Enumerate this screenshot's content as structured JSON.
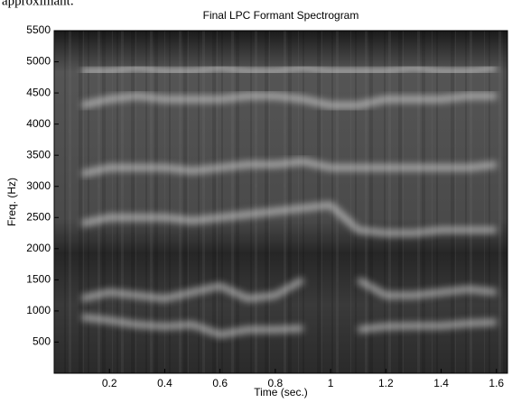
{
  "caption_fragment": "approximant.",
  "chart_data": {
    "type": "spectrogram",
    "title": "Final LPC Formant Spectrogram",
    "xlabel": "Time (sec.)",
    "ylabel": "Freq. (Hz)",
    "x": [
      0.1,
      0.2,
      0.3,
      0.4,
      0.5,
      0.6,
      0.7,
      0.8,
      0.9,
      1.0,
      1.1,
      1.2,
      1.3,
      1.4,
      1.5,
      1.6
    ],
    "series": [
      {
        "color": "#ffffff",
        "values": [
          900,
          850,
          780,
          750,
          780,
          620,
          700,
          700,
          720,
          null,
          700,
          750,
          760,
          760,
          800,
          820
        ]
      },
      {
        "color": "#ffffff",
        "values": [
          1200,
          1300,
          1250,
          1200,
          1300,
          1400,
          1200,
          1250,
          1500,
          null,
          1500,
          1250,
          1250,
          1300,
          1350,
          1300
        ]
      },
      {
        "color": "#ffffff",
        "values": [
          2400,
          2500,
          2500,
          2500,
          2450,
          2500,
          2550,
          2600,
          2650,
          2700,
          2300,
          2250,
          2250,
          2300,
          2300,
          2300
        ]
      },
      {
        "color": "#ffffff",
        "values": [
          3200,
          3300,
          3300,
          3300,
          3250,
          3300,
          3350,
          3350,
          3400,
          3300,
          3300,
          3300,
          3300,
          3300,
          3300,
          3350
        ]
      },
      {
        "color": "#ffffff",
        "values": [
          4300,
          4400,
          4450,
          4400,
          4400,
          4400,
          4450,
          4450,
          4400,
          4300,
          4300,
          4400,
          4400,
          4400,
          4450,
          4450
        ]
      },
      {
        "color": "#ffffff",
        "values": [
          4850,
          4850,
          4900,
          4850,
          4850,
          4900,
          4850,
          4850,
          4900,
          4850,
          4850,
          4850,
          4900,
          4850,
          4850,
          4900
        ]
      }
    ],
    "xlim": [
      0,
      1.64
    ],
    "xticks": [
      0.2,
      0.4,
      0.6,
      0.8,
      1,
      1.2,
      1.4,
      1.6
    ],
    "ylim": [
      0,
      5500
    ],
    "yticks": [
      500,
      1000,
      1500,
      2000,
      2500,
      3000,
      3500,
      4000,
      4500,
      5000,
      5500
    ],
    "grid": false
  }
}
